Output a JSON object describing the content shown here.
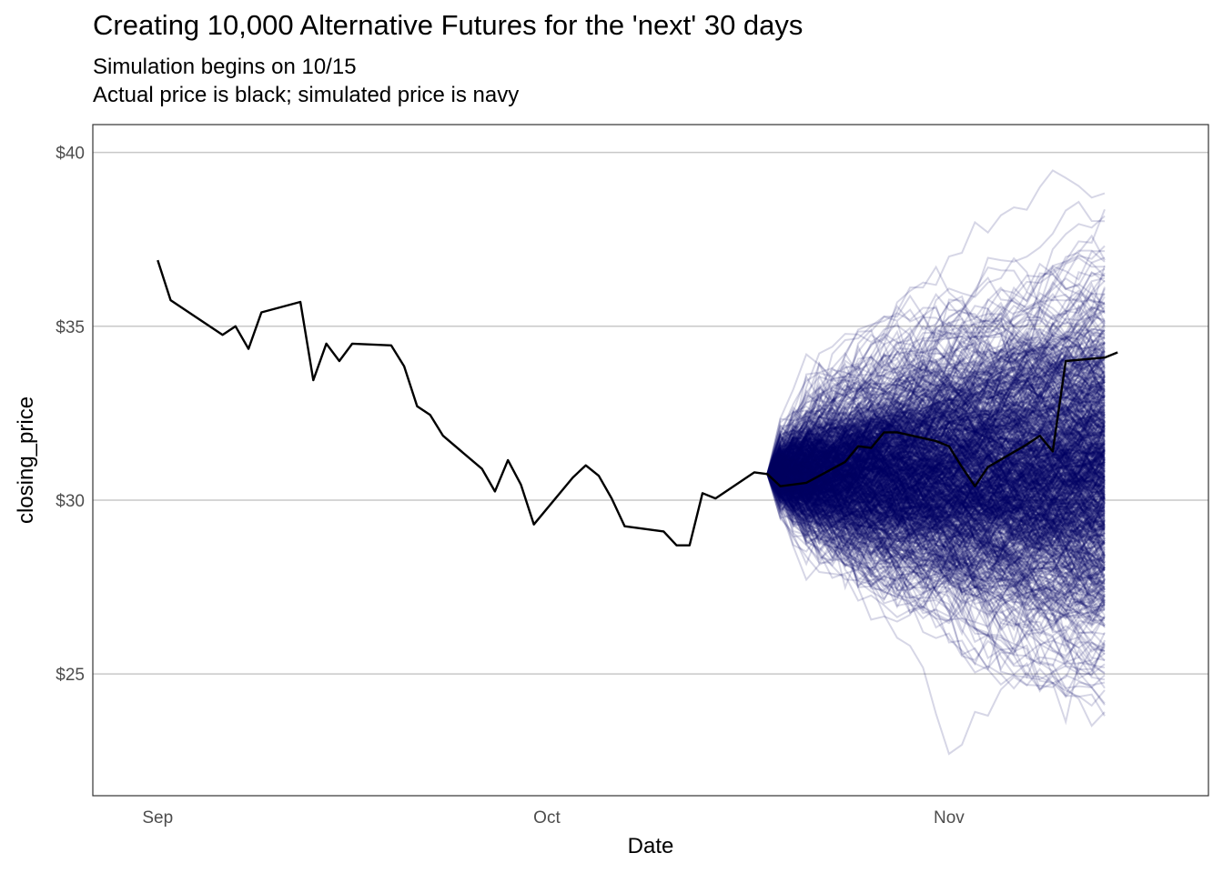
{
  "chart_data": {
    "type": "line",
    "title": "Creating 10,000 Alternative Futures for the 'next' 30 days",
    "subtitle_lines": [
      "Simulation begins on 10/15",
      "Actual price is black; simulated price is navy"
    ],
    "xlabel": "Date",
    "ylabel": "closing_price",
    "x_ticks": [
      {
        "date": "2019-09-01",
        "label": "Sep"
      },
      {
        "date": "2019-10-01",
        "label": "Oct"
      },
      {
        "date": "2019-11-01",
        "label": "Nov"
      }
    ],
    "y_ticks": [
      {
        "value": 25,
        "label": "$25"
      },
      {
        "value": 30,
        "label": "$30"
      },
      {
        "value": 35,
        "label": "$35"
      },
      {
        "value": 40,
        "label": "$40"
      }
    ],
    "xlim": [
      "2019-08-27",
      "2019-11-21"
    ],
    "ylim": [
      21.5,
      40.8
    ],
    "grid": "horizontal major lines",
    "colors": {
      "actual": "#000000",
      "simulated": "#000066",
      "grid": "#c8c8c8"
    },
    "series": [
      {
        "role": "actual",
        "points": [
          [
            "2019-09-01",
            36.9
          ],
          [
            "2019-09-02",
            35.75
          ],
          [
            "2019-09-06",
            34.75
          ],
          [
            "2019-09-07",
            35.0
          ],
          [
            "2019-09-08",
            34.35
          ],
          [
            "2019-09-09",
            35.4
          ],
          [
            "2019-09-12",
            35.7
          ],
          [
            "2019-09-13",
            33.45
          ],
          [
            "2019-09-14",
            34.5
          ],
          [
            "2019-09-15",
            34.0
          ],
          [
            "2019-09-16",
            34.5
          ],
          [
            "2019-09-19",
            34.45
          ],
          [
            "2019-09-20",
            33.85
          ],
          [
            "2019-09-21",
            32.7
          ],
          [
            "2019-09-22",
            32.45
          ],
          [
            "2019-09-23",
            31.85
          ],
          [
            "2019-09-26",
            30.9
          ],
          [
            "2019-09-27",
            30.25
          ],
          [
            "2019-09-28",
            31.15
          ],
          [
            "2019-09-29",
            30.45
          ],
          [
            "2019-09-30",
            29.3
          ],
          [
            "2019-10-03",
            30.65
          ],
          [
            "2019-10-04",
            31.0
          ],
          [
            "2019-10-05",
            30.7
          ],
          [
            "2019-10-06",
            30.05
          ],
          [
            "2019-10-07",
            29.25
          ],
          [
            "2019-10-10",
            29.1
          ],
          [
            "2019-10-11",
            28.7
          ],
          [
            "2019-10-12",
            28.7
          ],
          [
            "2019-10-13",
            30.2
          ],
          [
            "2019-10-14",
            30.05
          ],
          [
            "2019-10-17",
            30.8
          ],
          [
            "2019-10-18",
            30.75
          ],
          [
            "2019-10-19",
            30.4
          ],
          [
            "2019-10-21",
            30.5
          ],
          [
            "2019-10-24",
            31.1
          ],
          [
            "2019-10-25",
            31.55
          ],
          [
            "2019-10-26",
            31.5
          ],
          [
            "2019-10-27",
            31.95
          ],
          [
            "2019-10-28",
            31.95
          ],
          [
            "2019-10-31",
            31.7
          ],
          [
            "2019-11-01",
            31.55
          ],
          [
            "2019-11-02",
            30.95
          ],
          [
            "2019-11-03",
            30.4
          ],
          [
            "2019-11-04",
            30.95
          ],
          [
            "2019-11-07",
            31.6
          ],
          [
            "2019-11-08",
            31.85
          ],
          [
            "2019-11-09",
            31.4
          ],
          [
            "2019-11-10",
            34.0
          ],
          [
            "2019-11-13",
            34.1
          ],
          [
            "2019-11-14",
            34.25
          ]
        ]
      },
      {
        "role": "simulated",
        "paths": 10000,
        "start": [
          "2019-10-18",
          30.75
        ],
        "end_date": "2019-11-13",
        "spread_range_at_end": [
          22.3,
          39.95
        ]
      }
    ]
  }
}
